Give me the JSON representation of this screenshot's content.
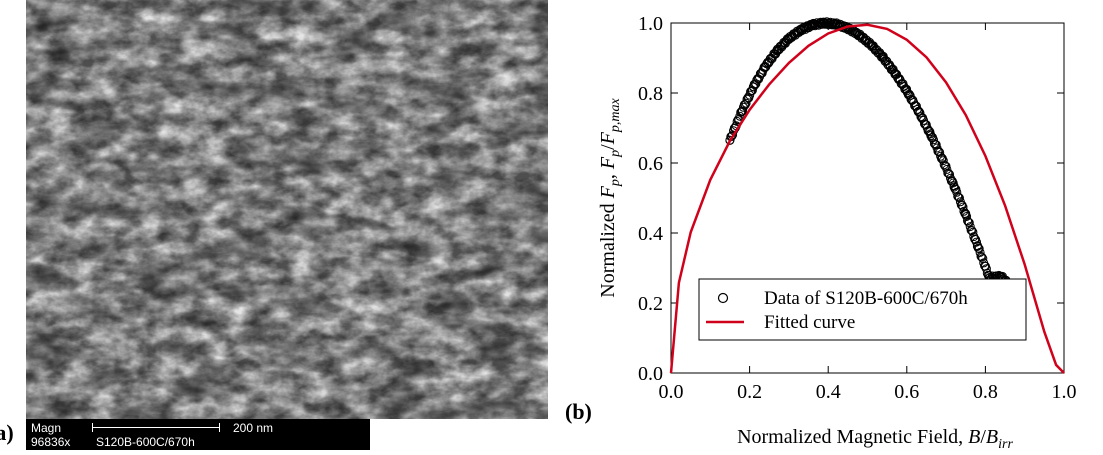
{
  "panel_a": {
    "label": "(a)",
    "sem_info": {
      "magn_label": "Magn",
      "magn_value": "96836x",
      "sample_id": "S120B-600C/670h",
      "scale_bar_label": "200 nm"
    }
  },
  "panel_b": {
    "label": "(b)"
  },
  "chart_data": {
    "type": "scatter",
    "x_axis": {
      "label_text": "Normalized Magnetic Field, ",
      "label_symbol": "B",
      "label_divider": "/",
      "label_symbol2": "B",
      "label_subscript": "irr",
      "range": [
        0.0,
        1.0
      ],
      "ticks": [
        "0.0",
        "0.2",
        "0.4",
        "0.6",
        "0.8",
        "1.0"
      ]
    },
    "y_axis": {
      "label_prefix": "Normalized ",
      "label_f": "F",
      "label_sub_p": "p",
      "label_comma": ", ",
      "label_f2": "F",
      "label_sub_p2": "p",
      "label_slash": "/",
      "label_f3": "F",
      "label_sub_pmax": "p,max",
      "range": [
        0.0,
        1.0
      ],
      "ticks": [
        "0.0",
        "0.2",
        "0.4",
        "0.6",
        "0.8",
        "1.0"
      ]
    },
    "legend": {
      "position": "bottom-left",
      "entries": [
        {
          "label": "Data of S120B-600C/670h",
          "marker": "open-circle",
          "color": "#000000"
        },
        {
          "label": "Fitted curve",
          "marker": "line",
          "color": "#d0021b"
        }
      ]
    },
    "series": [
      {
        "name": "Data of S120B-600C/670h",
        "type": "scatter",
        "x_range": [
          0.15,
          0.88
        ],
        "x": [
          0.15,
          0.18,
          0.21,
          0.24,
          0.27,
          0.3,
          0.33,
          0.36,
          0.39,
          0.42,
          0.45,
          0.48,
          0.51,
          0.54,
          0.57,
          0.6,
          0.63,
          0.66,
          0.69,
          0.72,
          0.75,
          0.78,
          0.81,
          0.84,
          0.87,
          0.88
        ],
        "y": [
          0.665,
          0.748,
          0.818,
          0.876,
          0.921,
          0.956,
          0.98,
          0.995,
          1.0,
          0.997,
          0.985,
          0.965,
          0.937,
          0.901,
          0.857,
          0.806,
          0.748,
          0.683,
          0.612,
          0.535,
          0.452,
          0.364,
          0.272,
          0.276,
          0.241,
          0.225
        ]
      },
      {
        "name": "Fitted curve",
        "type": "line",
        "color": "#d0021b",
        "x": [
          0.0,
          0.02,
          0.05,
          0.1,
          0.15,
          0.2,
          0.25,
          0.3,
          0.35,
          0.4,
          0.45,
          0.5,
          0.55,
          0.6,
          0.65,
          0.7,
          0.75,
          0.8,
          0.85,
          0.9,
          0.95,
          0.98,
          1.0
        ],
        "y": [
          0.0,
          0.258,
          0.402,
          0.552,
          0.663,
          0.752,
          0.825,
          0.886,
          0.935,
          0.97,
          0.99,
          0.995,
          0.983,
          0.952,
          0.902,
          0.83,
          0.737,
          0.62,
          0.478,
          0.31,
          0.118,
          0.023,
          0.0
        ]
      }
    ],
    "grid": false
  }
}
